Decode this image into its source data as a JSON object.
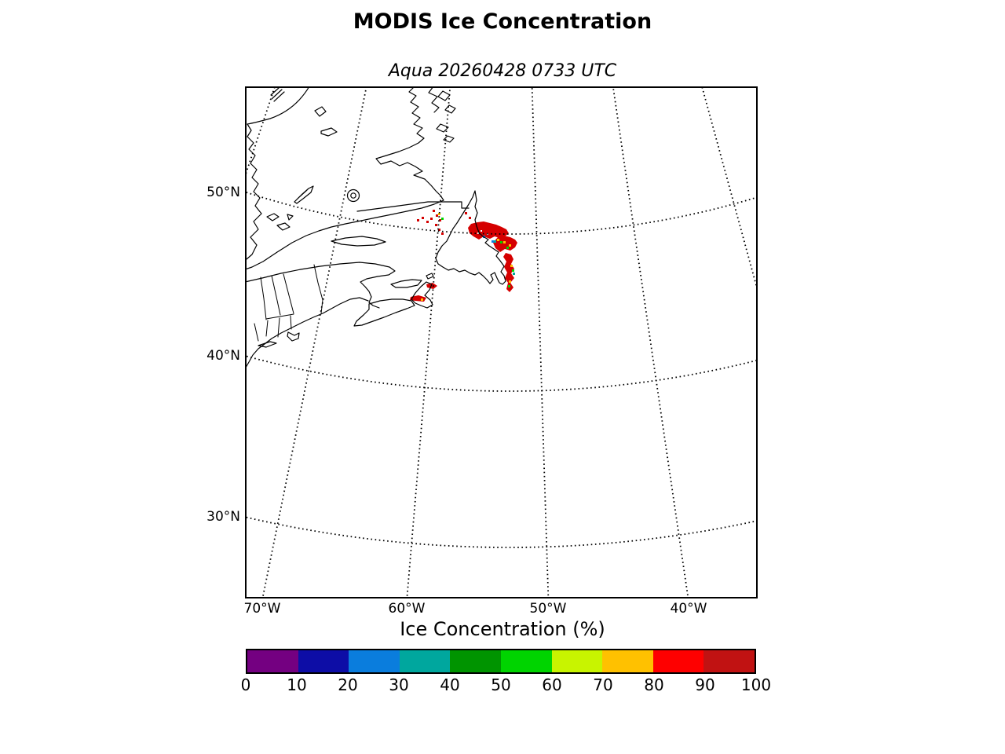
{
  "title": "MODIS Ice Concentration",
  "subtitle": "Aqua 20260428 0733 UTC",
  "map": {
    "lat_tick_labels": [
      "50°N",
      "40°N",
      "30°N"
    ],
    "lon_tick_labels": [
      "70°W",
      "60°W",
      "50°W",
      "40°W"
    ]
  },
  "colorbar": {
    "title": "Ice Concentration (%)",
    "tick_labels": [
      "0",
      "10",
      "20",
      "30",
      "40",
      "50",
      "60",
      "70",
      "80",
      "90",
      "100"
    ],
    "segment_colors": [
      "#740081",
      "#0D0DA6",
      "#0A7DDD",
      "#00A79E",
      "#009400",
      "#00D400",
      "#C8F400",
      "#FFC100",
      "#FE0000",
      "#C11212"
    ]
  },
  "chart_data": {
    "type": "heatmap",
    "title": "MODIS Ice Concentration",
    "subtitle": "Aqua 20260428 0733 UTC",
    "map_region": "Gulf of St. Lawrence / Newfoundland and Labrador / northeastern North America",
    "gridlines": {
      "latitudes_deg_N": [
        50,
        40,
        30
      ],
      "longitudes_deg_W": [
        70,
        60,
        50,
        40
      ],
      "style": "dotted"
    },
    "colorbar": {
      "label": "Ice Concentration (%)",
      "range": [
        0,
        100
      ],
      "bin_edges": [
        0,
        10,
        20,
        30,
        40,
        50,
        60,
        70,
        80,
        90,
        100
      ],
      "bin_colors": [
        "#740081",
        "#0D0DA6",
        "#0A7DDD",
        "#00A79E",
        "#009400",
        "#00D400",
        "#C8F400",
        "#FFC100",
        "#FE0000",
        "#C11212"
      ],
      "orientation": "horizontal"
    },
    "ice_regions_depicted": [
      {
        "location": "northeast Newfoundland coast near 50N 53W",
        "dominant_concentration_pct": "80-100",
        "minor_pixels_pct": "30-80"
      },
      {
        "location": "east Newfoundland / Bonavista-Avalon coastal strip",
        "dominant_concentration_pct": "80-100"
      },
      {
        "location": "southern Labrador coast / Strait of Belle Isle",
        "dominant_concentration_pct": "80-100"
      },
      {
        "location": "northern Cape Breton Island",
        "dominant_concentration_pct": "80-100"
      }
    ]
  }
}
